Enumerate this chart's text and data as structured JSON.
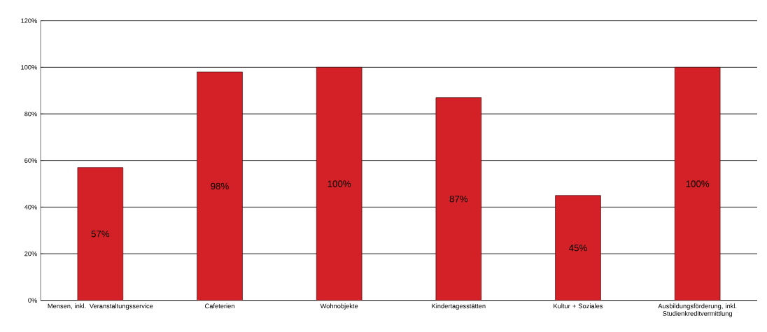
{
  "chart_data": {
    "type": "bar",
    "categories": [
      "Mensen, inkl. Veranstaltungsservice",
      "Cafeterien",
      "Wohnobjekte",
      "Kindertagesstätten",
      "Kultur + Soziales",
      "Ausbildungsförderung, inkl. Studienkreditvermittlung"
    ],
    "values": [
      57,
      98,
      100,
      87,
      45,
      100
    ],
    "value_labels": [
      "57%",
      "98%",
      "100%",
      "87%",
      "45%",
      "100%"
    ],
    "color": "#d42027",
    "ylim": [
      0,
      120
    ],
    "yticks": [
      {
        "value": 0,
        "label": "0%"
      },
      {
        "value": 20,
        "label": "20%"
      },
      {
        "value": 40,
        "label": "40%"
      },
      {
        "value": 60,
        "label": "60%"
      },
      {
        "value": 80,
        "label": "80%"
      },
      {
        "value": 100,
        "label": "100%"
      },
      {
        "value": 120,
        "label": "120%"
      }
    ],
    "grid": "y"
  }
}
